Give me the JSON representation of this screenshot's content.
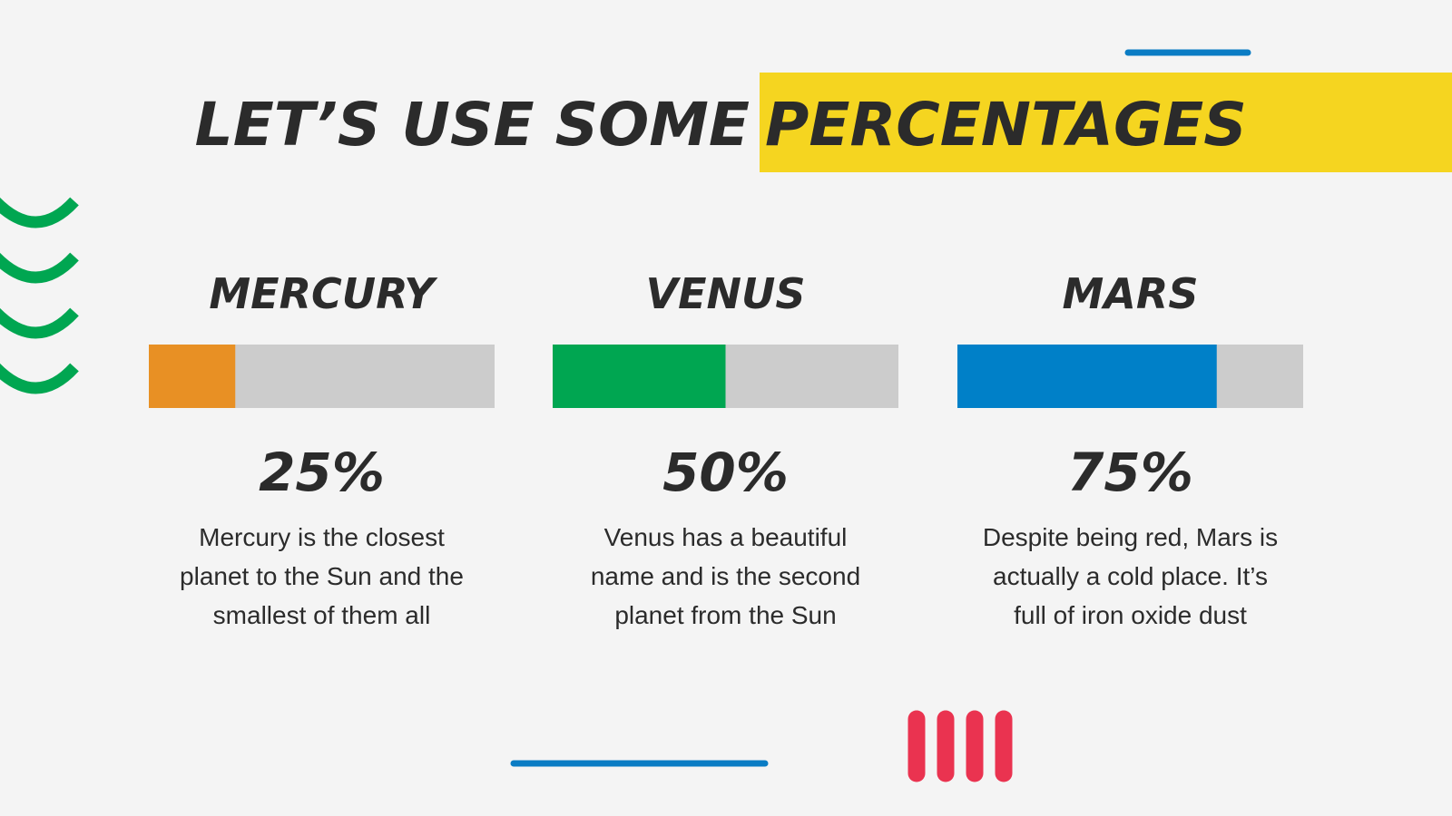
{
  "chart_data": {
    "type": "progress",
    "title": "LET’S USE SOME",
    "title_highlight": "PERCENTAGES",
    "categories": [
      "MERCURY",
      "VENUS",
      "MARS"
    ],
    "values": [
      25,
      50,
      75
    ],
    "value_labels": [
      "25%",
      "50%",
      "75%"
    ],
    "colors": [
      "#e89024",
      "#00a651",
      "#0080c8"
    ],
    "track_color": "#cccccc",
    "xlim": [
      0,
      100
    ],
    "descriptions": [
      [
        "Mercury is the closest",
        "planet to the Sun and the",
        "smallest of them all"
      ],
      [
        "Venus has a beautiful",
        "name and is the second",
        "planet from the Sun"
      ],
      [
        "Despite being red, Mars is",
        "actually a cold place. It’s",
        "full of iron oxide dust"
      ]
    ]
  }
}
